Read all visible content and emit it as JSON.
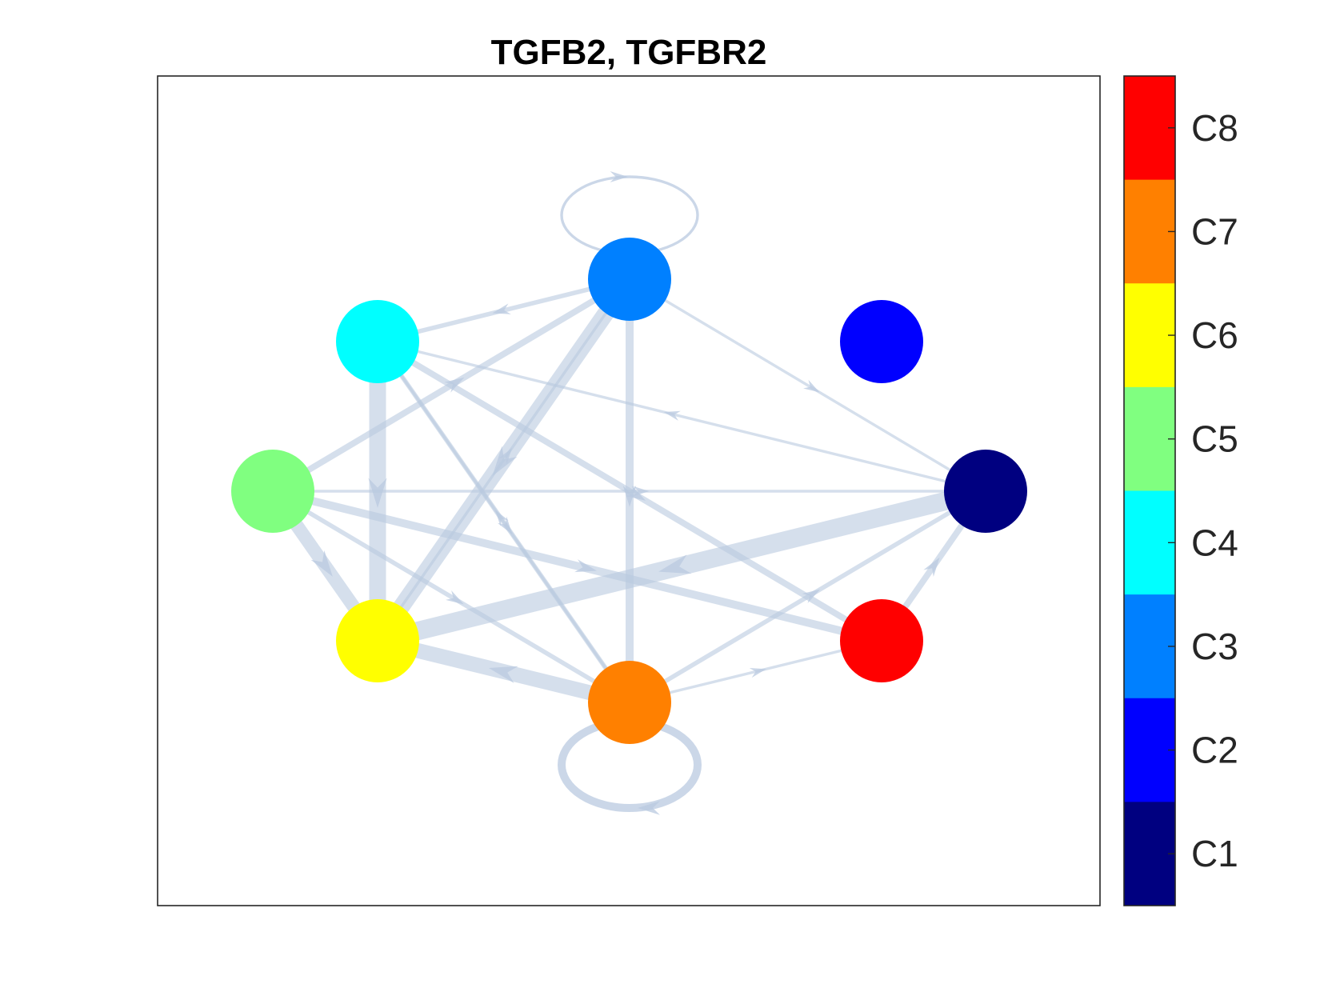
{
  "figure": {
    "title": "TGFB2, TGFBR2"
  },
  "edge_color": "#b9c9e0",
  "nodes": [
    {
      "id": "C1",
      "color": "#000080"
    },
    {
      "id": "C2",
      "color": "#0000ff"
    },
    {
      "id": "C3",
      "color": "#0080ff"
    },
    {
      "id": "C4",
      "color": "#00ffff"
    },
    {
      "id": "C5",
      "color": "#80ff80"
    },
    {
      "id": "C6",
      "color": "#ffff00"
    },
    {
      "id": "C7",
      "color": "#ff8000"
    },
    {
      "id": "C8",
      "color": "#ff0000"
    }
  ],
  "edges": [
    {
      "source": "C3",
      "target": "C3",
      "weight": 1
    },
    {
      "source": "C7",
      "target": "C7",
      "weight": 4
    },
    {
      "source": "C3",
      "target": "C4",
      "weight": 2
    },
    {
      "source": "C4",
      "target": "C6",
      "weight": 9
    },
    {
      "source": "C3",
      "target": "C6",
      "weight": 9
    },
    {
      "source": "C3",
      "target": "C7",
      "weight": 4
    },
    {
      "source": "C4",
      "target": "C7",
      "weight": 2
    },
    {
      "source": "C5",
      "target": "C6",
      "weight": 7
    },
    {
      "source": "C1",
      "target": "C6",
      "weight": 10
    },
    {
      "source": "C7",
      "target": "C6",
      "weight": 8
    },
    {
      "source": "C5",
      "target": "C8",
      "weight": 4
    },
    {
      "source": "C4",
      "target": "C8",
      "weight": 3
    },
    {
      "source": "C5",
      "target": "C3",
      "weight": 3
    },
    {
      "source": "C1",
      "target": "C4",
      "weight": 1
    },
    {
      "source": "C3",
      "target": "C1",
      "weight": 1
    },
    {
      "source": "C5",
      "target": "C1",
      "weight": 1
    },
    {
      "source": "C8",
      "target": "C1",
      "weight": 3
    },
    {
      "source": "C7",
      "target": "C8",
      "weight": 1
    },
    {
      "source": "C7",
      "target": "C1",
      "weight": 2
    },
    {
      "source": "C5",
      "target": "C7",
      "weight": 2
    },
    {
      "source": "C7",
      "target": "C4",
      "weight": 1
    },
    {
      "source": "C6",
      "target": "C3",
      "weight": 1
    }
  ],
  "colorbar": {
    "labels": [
      "C8",
      "C7",
      "C6",
      "C5",
      "C4",
      "C3",
      "C2",
      "C1"
    ],
    "colors": [
      "#ff0000",
      "#ff8000",
      "#ffff00",
      "#80ff80",
      "#00ffff",
      "#0080ff",
      "#0000ff",
      "#000080"
    ]
  }
}
